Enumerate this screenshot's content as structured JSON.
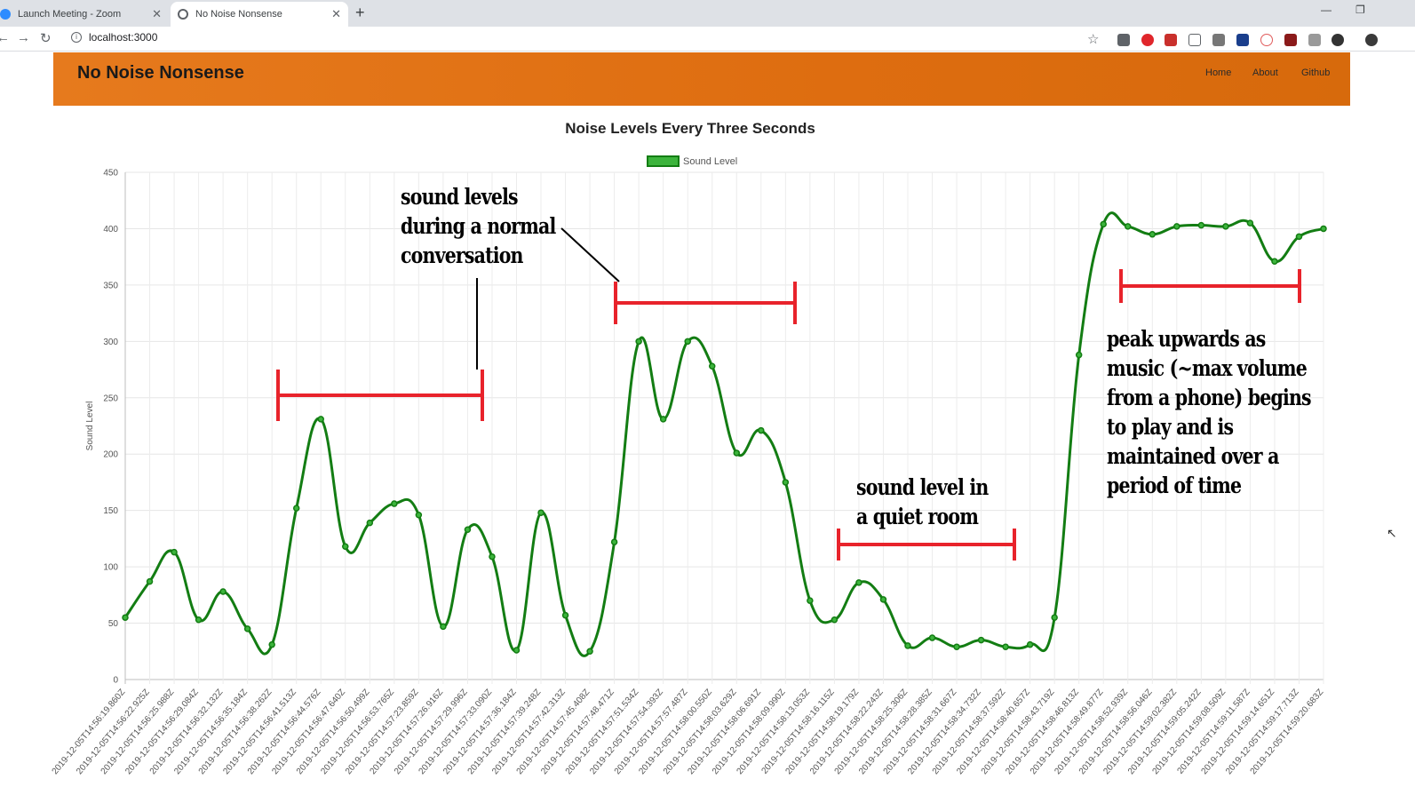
{
  "browser": {
    "tabs": [
      {
        "title": "Launch Meeting - Zoom",
        "close": "✕"
      },
      {
        "title": "No Noise Nonsense",
        "close": "✕"
      }
    ],
    "new_tab": "+",
    "url": "localhost:3000"
  },
  "site": {
    "brand": "No Noise Nonsense",
    "nav": [
      "Home",
      "About",
      "Github"
    ]
  },
  "chart_data": {
    "type": "line",
    "title": "Noise Levels Every Three Seconds",
    "xlabel": "",
    "ylabel": "Sound Level",
    "ylim": [
      0,
      450
    ],
    "yticks": [
      0,
      50,
      100,
      150,
      200,
      250,
      300,
      350,
      400,
      450
    ],
    "legend": "top",
    "grid": true,
    "series": [
      {
        "name": "Sound Level",
        "color": "#137d13",
        "fill": "#3cb43c",
        "values": [
          55,
          87,
          113,
          53,
          78,
          45,
          31,
          152,
          231,
          118,
          139,
          156,
          146,
          47,
          133,
          109,
          26,
          148,
          57,
          25,
          122,
          300,
          231,
          300,
          278,
          201,
          221,
          175,
          70,
          53,
          86,
          71,
          30,
          37,
          29,
          35,
          29,
          31,
          55,
          288,
          404,
          402,
          395,
          402,
          403,
          402,
          405,
          371,
          393,
          400
        ]
      }
    ],
    "x": [
      "2019-12-05T14:56:19.860Z",
      "2019-12-05T14:56:22.925Z",
      "2019-12-05T14:56:25.988Z",
      "2019-12-05T14:56:29.084Z",
      "2019-12-05T14:56:32.132Z",
      "2019-12-05T14:56:35.184Z",
      "2019-12-05T14:56:38.262Z",
      "2019-12-05T14:56:41.513Z",
      "2019-12-05T14:56:44.576Z",
      "2019-12-05T14:56:47.640Z",
      "2019-12-05T14:56:50.499Z",
      "2019-12-05T14:56:53.765Z",
      "2019-12-05T14:57:23.859Z",
      "2019-12-05T14:57:26.916Z",
      "2019-12-05T14:57:29.996Z",
      "2019-12-05T14:57:33.090Z",
      "2019-12-05T14:57:36.184Z",
      "2019-12-05T14:57:39.248Z",
      "2019-12-05T14:57:42.313Z",
      "2019-12-05T14:57:45.408Z",
      "2019-12-05T14:57:48.471Z",
      "2019-12-05T14:57:51.534Z",
      "2019-12-05T14:57:54.393Z",
      "2019-12-05T14:57:57.487Z",
      "2019-12-05T14:58:00.550Z",
      "2019-12-05T14:58:03.629Z",
      "2019-12-05T14:58:06.691Z",
      "2019-12-05T14:58:09.990Z",
      "2019-12-05T14:58:13.053Z",
      "2019-12-05T14:58:16.115Z",
      "2019-12-05T14:58:19.179Z",
      "2019-12-05T14:58:22.243Z",
      "2019-12-05T14:58:25.306Z",
      "2019-12-05T14:58:28.385Z",
      "2019-12-05T14:58:31.667Z",
      "2019-12-05T14:58:34.732Z",
      "2019-12-05T14:58:37.592Z",
      "2019-12-05T14:58:40.657Z",
      "2019-12-05T14:58:43.719Z",
      "2019-12-05T14:58:46.813Z",
      "2019-12-05T14:58:49.877Z",
      "2019-12-05T14:58:52.939Z",
      "2019-12-05T14:58:56.046Z",
      "2019-12-05T14:59:02.382Z",
      "2019-12-05T14:59:05.242Z",
      "2019-12-05T14:59:08.509Z",
      "2019-12-05T14:59:11.587Z",
      "2019-12-05T14:59:14.651Z",
      "2019-12-05T14:59:17.713Z",
      "2019-12-05T14:59:20.683Z"
    ],
    "annotations": [
      {
        "text": "sound levels\nduring a normal\nconversation",
        "ranges_x_index": [
          [
            6,
            14
          ],
          [
            20,
            27
          ]
        ]
      },
      {
        "text": "sound level in\na quiet room",
        "ranges_x_index": [
          [
            29,
            36
          ]
        ]
      },
      {
        "text": "peak upwards as\nmusic (~max volume\nfrom a phone) begins\nto play and is\nmaintained over a\nperiod of time",
        "ranges_x_index": [
          [
            41,
            48
          ]
        ]
      }
    ]
  }
}
